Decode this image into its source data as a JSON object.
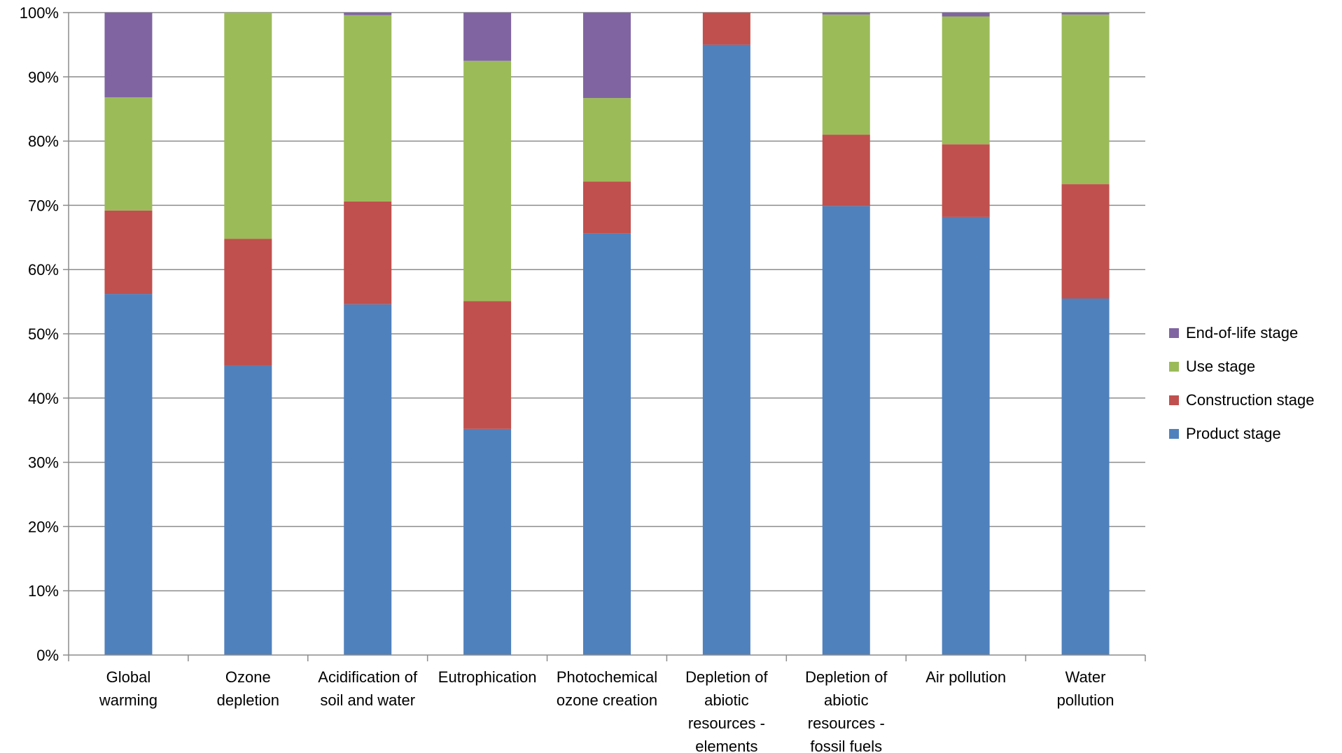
{
  "chart_data": {
    "type": "bar",
    "stacked": true,
    "percent": true,
    "categories": [
      [
        "Global",
        "warming"
      ],
      [
        "Ozone",
        "depletion"
      ],
      [
        "Acidification of",
        "soil and water"
      ],
      [
        "Eutrophication"
      ],
      [
        "Photochemical",
        "ozone creation"
      ],
      [
        "Depletion of",
        "abiotic",
        "resources -",
        "elements"
      ],
      [
        "Depletion of",
        "abiotic",
        "resources -",
        "fossil fuels"
      ],
      [
        "Air pollution"
      ],
      [
        "Water",
        "pollution"
      ]
    ],
    "series": [
      {
        "name": "Product stage",
        "color": "#4F81BD",
        "values": [
          56.2,
          45.0,
          54.6,
          35.2,
          65.6,
          95.0,
          69.9,
          68.2,
          55.5
        ]
      },
      {
        "name": "Construction stage",
        "color": "#C0504D",
        "values": [
          13.0,
          19.8,
          16.0,
          19.9,
          8.1,
          5.0,
          11.1,
          11.3,
          17.8
        ]
      },
      {
        "name": "Use stage",
        "color": "#9BBB59",
        "values": [
          17.6,
          35.2,
          29.0,
          37.4,
          13.0,
          0.0,
          18.7,
          19.9,
          26.4
        ]
      },
      {
        "name": "End-of-life stage",
        "color": "#8064A2",
        "values": [
          13.2,
          0.0,
          0.4,
          7.5,
          13.3,
          0.0,
          0.3,
          0.6,
          0.3
        ]
      }
    ],
    "yticks": [
      "0%",
      "10%",
      "20%",
      "30%",
      "40%",
      "50%",
      "60%",
      "70%",
      "80%",
      "90%",
      "100%"
    ],
    "ylim": [
      0,
      100
    ],
    "grid": true,
    "legend_position": "right",
    "legend_order": [
      "End-of-life stage",
      "Use stage",
      "Construction stage",
      "Product stage"
    ]
  }
}
